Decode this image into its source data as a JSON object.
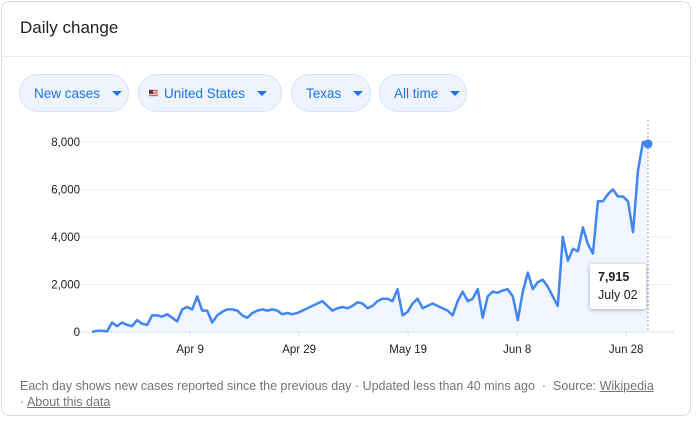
{
  "header": {
    "title": "Daily change"
  },
  "filters": {
    "metric": "New cases",
    "country": "United States",
    "region": "Texas",
    "range": "All time"
  },
  "tooltip": {
    "value": "7,915",
    "date": "July 02"
  },
  "footer": {
    "description": "Each day shows new cases reported since the previous day",
    "separator": "·",
    "updated": "Updated less than 40 mins ago",
    "source_label": "Source:",
    "source_link": "Wikipedia",
    "about_link": "About this data"
  },
  "colors": {
    "line": "#4285f4",
    "chip_text": "#1a73e8",
    "area": "#eaf1fd"
  },
  "chart_data": {
    "type": "area",
    "title": "",
    "xlabel": "",
    "ylabel": "",
    "ylim": [
      0,
      8500
    ],
    "yticks": [
      0,
      2000,
      4000,
      6000,
      8000
    ],
    "ytick_labels": [
      "0",
      "2,000",
      "4,000",
      "6,000",
      "8,000"
    ],
    "xticks": [
      "2020-04-09",
      "2020-04-29",
      "2020-05-19",
      "2020-06-08",
      "2020-06-28"
    ],
    "xtick_labels": [
      "Apr 9",
      "Apr 29",
      "May 19",
      "Jun 8",
      "Jun 28"
    ],
    "x_start": "2020-03-22",
    "x_end": "2020-07-02",
    "series": [
      {
        "name": "",
        "values": [
          0,
          50,
          50,
          20,
          400,
          250,
          400,
          300,
          250,
          500,
          350,
          300,
          700,
          700,
          650,
          750,
          600,
          450,
          950,
          1050,
          950,
          1500,
          900,
          900,
          400,
          700,
          850,
          950,
          950,
          900,
          700,
          600,
          800,
          900,
          950,
          900,
          950,
          900,
          750,
          800,
          750,
          800,
          900,
          1000,
          1100,
          1200,
          1300,
          1100,
          900,
          1000,
          1050,
          1000,
          1100,
          1250,
          1200,
          1000,
          1100,
          1300,
          1400,
          1400,
          1300,
          1800,
          700,
          850,
          1200,
          1400,
          1000,
          1100,
          1200,
          1100,
          1000,
          900,
          700,
          1300,
          1700,
          1300,
          1400,
          1800,
          600,
          1500,
          1700,
          1650,
          1750,
          1800,
          1500,
          500,
          1700,
          2500,
          1800,
          2100,
          2200,
          1900,
          1500,
          1100,
          4000,
          3000,
          3500,
          3400,
          4400,
          3700,
          3300,
          5500,
          5500,
          5800,
          6000,
          5700,
          5700,
          5500,
          4200,
          6800,
          8000,
          7915
        ]
      }
    ],
    "highlight": {
      "value": 7915,
      "label": "July 02"
    }
  }
}
